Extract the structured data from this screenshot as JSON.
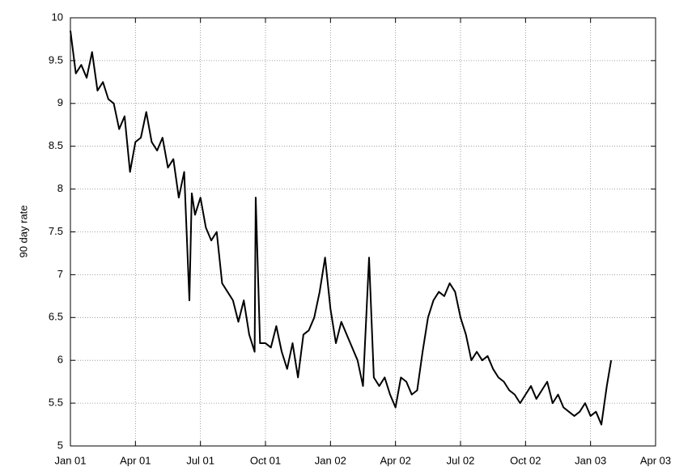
{
  "chart_data": {
    "type": "line",
    "ylabel": "90 day rate",
    "xlim": [
      0,
      27
    ],
    "ylim": [
      5,
      10
    ],
    "grid": true,
    "xticks": [
      {
        "value": 0,
        "label": "Jan 01"
      },
      {
        "value": 3,
        "label": "Apr 01"
      },
      {
        "value": 6,
        "label": "Jul 01"
      },
      {
        "value": 9,
        "label": "Oct 01"
      },
      {
        "value": 12,
        "label": "Jan 02"
      },
      {
        "value": 15,
        "label": "Apr 02"
      },
      {
        "value": 18,
        "label": "Jul 02"
      },
      {
        "value": 21,
        "label": "Oct 02"
      },
      {
        "value": 24,
        "label": "Jan 03"
      },
      {
        "value": 27,
        "label": "Apr 03"
      }
    ],
    "yticks": [
      5,
      {
        "value": 5.5,
        "label": "5.5"
      },
      6,
      {
        "value": 6.5,
        "label": "6.5"
      },
      7,
      {
        "value": 7.5,
        "label": "7.5"
      },
      8,
      {
        "value": 8.5,
        "label": "8.5"
      },
      9,
      {
        "value": 9.5,
        "label": "9.5"
      },
      10
    ],
    "series": [
      {
        "color": "#000000",
        "x": [
          0,
          0.25,
          0.5,
          0.75,
          1.0,
          1.25,
          1.5,
          1.75,
          2.0,
          2.25,
          2.5,
          2.75,
          3.0,
          3.25,
          3.5,
          3.75,
          4.0,
          4.25,
          4.5,
          4.75,
          5.0,
          5.25,
          5.49,
          5.6,
          5.75,
          6.0,
          6.25,
          6.5,
          6.75,
          7.0,
          7.25,
          7.5,
          7.75,
          8.0,
          8.25,
          8.5,
          8.55,
          8.75,
          9.0,
          9.25,
          9.5,
          9.75,
          10.0,
          10.25,
          10.5,
          10.75,
          11.0,
          11.25,
          11.5,
          11.75,
          12.0,
          12.25,
          12.5,
          12.75,
          13.0,
          13.25,
          13.5,
          13.78,
          14.0,
          14.25,
          14.5,
          14.75,
          15.0,
          15.25,
          15.5,
          15.75,
          16.0,
          16.25,
          16.5,
          16.75,
          17.0,
          17.25,
          17.5,
          17.75,
          18.0,
          18.25,
          18.5,
          18.75,
          19.0,
          19.25,
          19.5,
          19.75,
          20.0,
          20.25,
          20.5,
          20.75,
          21.0,
          21.25,
          21.5,
          21.75,
          22.0,
          22.25,
          22.5,
          22.75,
          23.0,
          23.25,
          23.5,
          23.75,
          24.0,
          24.25,
          24.5,
          24.75,
          24.95
        ],
        "values": [
          9.85,
          9.35,
          9.45,
          9.3,
          9.6,
          9.15,
          9.25,
          9.05,
          9.0,
          8.7,
          8.85,
          8.2,
          8.55,
          8.6,
          8.9,
          8.55,
          8.45,
          8.6,
          8.25,
          8.35,
          7.9,
          8.2,
          6.7,
          7.95,
          7.7,
          7.9,
          7.55,
          7.4,
          7.5,
          6.9,
          6.8,
          6.7,
          6.45,
          6.7,
          6.3,
          6.1,
          7.9,
          6.2,
          6.2,
          6.15,
          6.4,
          6.1,
          5.9,
          6.2,
          5.8,
          6.3,
          6.35,
          6.5,
          6.8,
          7.2,
          6.6,
          6.2,
          6.45,
          6.3,
          6.15,
          6.0,
          5.7,
          7.2,
          5.8,
          5.7,
          5.8,
          5.6,
          5.45,
          5.8,
          5.75,
          5.6,
          5.65,
          6.1,
          6.5,
          6.7,
          6.8,
          6.75,
          6.9,
          6.8,
          6.5,
          6.3,
          6.0,
          6.1,
          6.0,
          6.05,
          5.9,
          5.8,
          5.75,
          5.65,
          5.6,
          5.5,
          5.6,
          5.7,
          5.55,
          5.65,
          5.75,
          5.5,
          5.6,
          5.45,
          5.4,
          5.35,
          5.4,
          5.5,
          5.35,
          5.4,
          5.25,
          5.7,
          6.0
        ]
      }
    ]
  }
}
